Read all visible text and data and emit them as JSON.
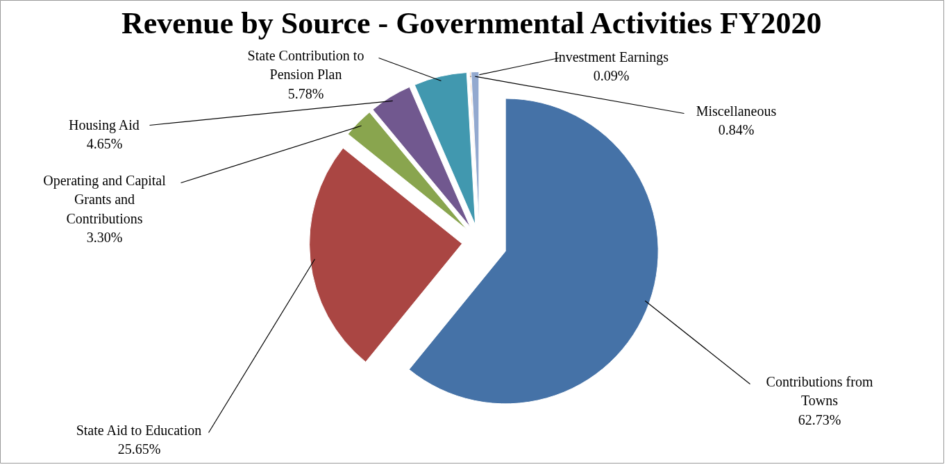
{
  "chart_data": {
    "type": "pie",
    "title": "Revenue by Source - Governmental Activities FY2020",
    "categories": [
      "Contributions from Towns",
      "State Aid to Education",
      "Operating and Capital Grants and Contributions",
      "Housing Aid",
      "State Contribution to Pension Plan",
      "Investment Earnings",
      "Miscellaneous"
    ],
    "values": [
      62.73,
      25.65,
      3.3,
      4.65,
      5.78,
      0.09,
      0.84
    ],
    "colors": [
      "#4572a7",
      "#aa4643",
      "#89a54e",
      "#71588f",
      "#4198af",
      "#db843d",
      "#93a9cf"
    ],
    "value_labels": [
      "62.73%",
      "25.65%",
      "3.30%",
      "4.65%",
      "5.78%",
      "0.09%",
      "0.84%"
    ]
  }
}
